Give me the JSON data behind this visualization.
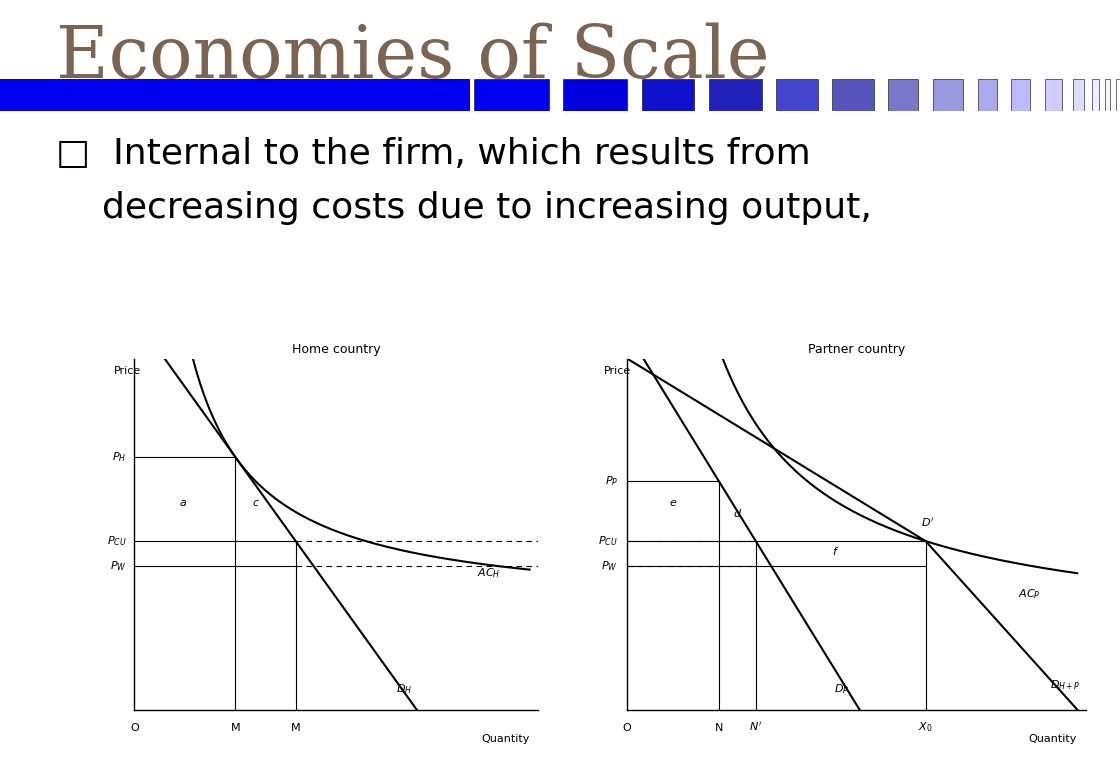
{
  "title": "Economies of Scale",
  "title_color": "#7B6451",
  "title_fontsize": 52,
  "bullet_text_line1": "□  Internal to the firm, which results from",
  "bullet_text_line2": "    decreasing costs due to increasing output,",
  "bullet_fontsize": 26,
  "bg_color": "#ffffff",
  "bar_colors": [
    "#0000EE",
    "#0000EE",
    "#0000DD",
    "#1111CC",
    "#2222BB",
    "#4444CC",
    "#5555BB",
    "#7777CC",
    "#9999DD",
    "#AAAAEE",
    "#BBBBFF",
    "#CCCCFF",
    "#DDDDFF",
    "#EEEEFF",
    "#F5F5FF",
    "#ffffff"
  ],
  "bar_starts": [
    0.0,
    0.42,
    0.5,
    0.57,
    0.63,
    0.69,
    0.74,
    0.79,
    0.83,
    0.87,
    0.9,
    0.93,
    0.955,
    0.972,
    0.984,
    0.993
  ],
  "bar_ends": [
    0.42,
    0.49,
    0.56,
    0.62,
    0.68,
    0.73,
    0.78,
    0.82,
    0.86,
    0.89,
    0.92,
    0.948,
    0.968,
    0.981,
    0.991,
    1.0
  ],
  "home_title": "Home country",
  "partner_title": "Partner country",
  "home_ylabel": "Price",
  "partner_ylabel": "Price",
  "home_xlabel": "Quantity",
  "partner_xlabel": "Quantity"
}
